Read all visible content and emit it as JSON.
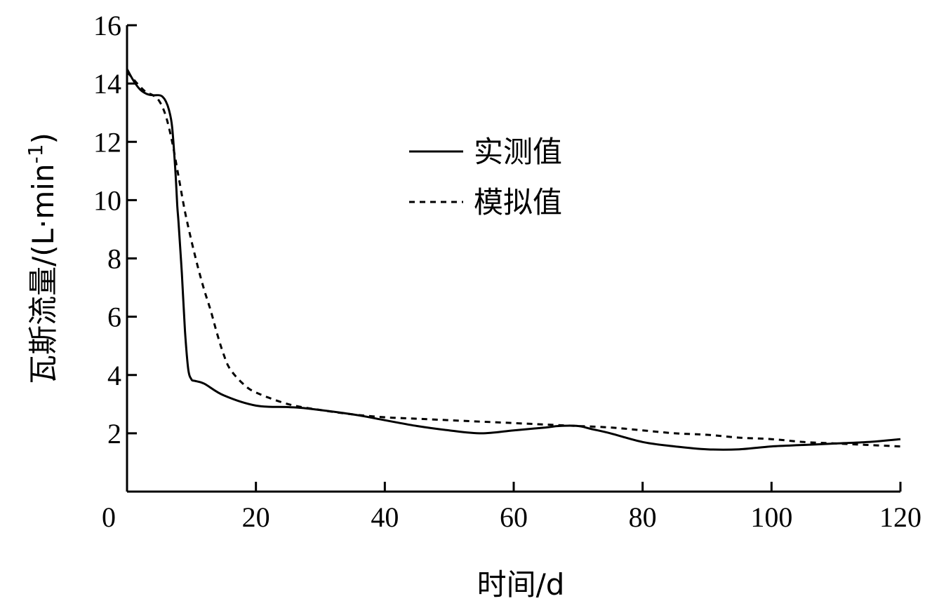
{
  "chart_data": {
    "type": "line",
    "title": "",
    "xlabel": "时间/d",
    "ylabel": "瓦斯流量/(L·min",
    "ylabel_sup": "-1",
    "ylabel_close": ")",
    "xlim": [
      0,
      120
    ],
    "ylim": [
      0,
      16
    ],
    "xticks": [
      0,
      20,
      40,
      60,
      80,
      100,
      120
    ],
    "yticks": [
      2,
      4,
      6,
      8,
      10,
      12,
      14,
      16
    ],
    "grid": false,
    "legend_position": "top-center",
    "series": [
      {
        "name": "实测值",
        "style": "solid",
        "color": "#000000",
        "x": [
          0,
          1,
          2,
          3,
          4,
          5,
          5.5,
          6,
          6.5,
          7,
          7.5,
          7.8,
          8,
          8.5,
          9,
          9.5,
          10,
          10.5,
          12,
          15,
          20,
          25,
          28,
          35,
          40,
          45,
          50,
          55,
          60,
          65,
          67,
          70,
          72,
          75,
          80,
          85,
          90,
          95,
          100,
          105,
          110,
          115,
          120
        ],
        "y": [
          14.5,
          14.1,
          13.8,
          13.65,
          13.6,
          13.6,
          13.55,
          13.4,
          13.1,
          12.5,
          11.0,
          9.8,
          9.2,
          7.5,
          5.5,
          4.2,
          3.85,
          3.8,
          3.7,
          3.3,
          2.95,
          2.9,
          2.85,
          2.65,
          2.45,
          2.25,
          2.1,
          2.0,
          2.1,
          2.2,
          2.25,
          2.25,
          2.15,
          2.0,
          1.7,
          1.55,
          1.45,
          1.45,
          1.55,
          1.6,
          1.65,
          1.7,
          1.8
        ]
      },
      {
        "name": "模拟值",
        "style": "dashed",
        "color": "#000000",
        "x": [
          0,
          2,
          3,
          4,
          5,
          6,
          7,
          8,
          9,
          10,
          11,
          12,
          13,
          14,
          15,
          16,
          18,
          20,
          25,
          30,
          35,
          40,
          45,
          50,
          55,
          60,
          65,
          70,
          75,
          80,
          85,
          90,
          95,
          100,
          105,
          110,
          115,
          120
        ],
        "y": [
          14.4,
          13.9,
          13.7,
          13.6,
          13.4,
          12.9,
          12.0,
          10.8,
          9.6,
          8.6,
          7.7,
          6.9,
          6.2,
          5.4,
          4.7,
          4.2,
          3.7,
          3.4,
          3.0,
          2.8,
          2.65,
          2.55,
          2.5,
          2.45,
          2.4,
          2.35,
          2.3,
          2.25,
          2.2,
          2.1,
          2.0,
          1.95,
          1.85,
          1.8,
          1.7,
          1.65,
          1.6,
          1.55
        ]
      }
    ]
  }
}
